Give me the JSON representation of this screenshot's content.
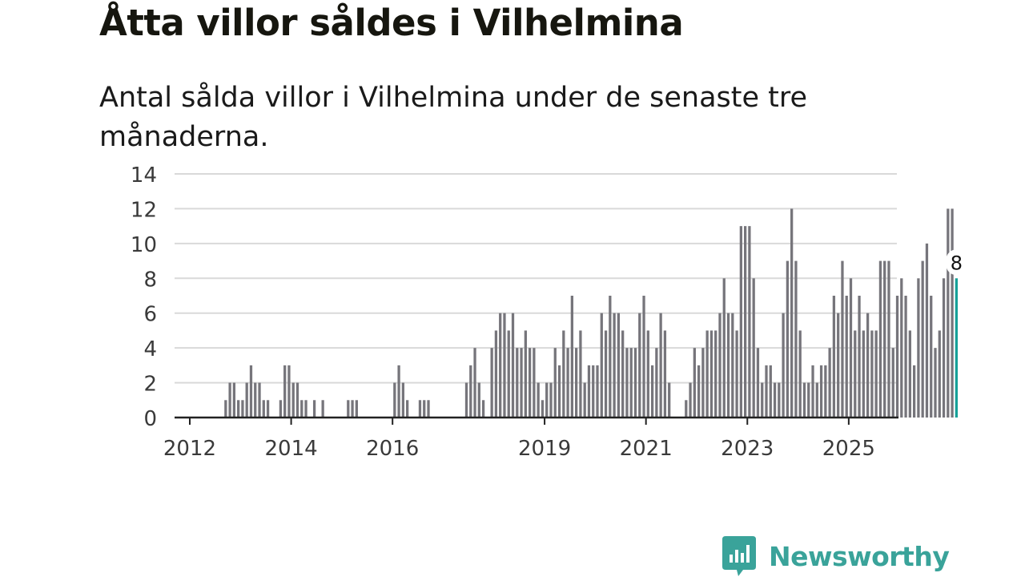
{
  "title": "Åtta villor såldes i Vilhelmina",
  "subtitle": "Antal sålda villor i Vilhelmina under de senaste tre månaderna.",
  "brand": {
    "name": "Newsworthy",
    "color": "#3aa39a",
    "icon": "chat-bubble-bar-chart-icon"
  },
  "colors": {
    "bar": "#76757b",
    "highlight": "#15a199",
    "grid": "#d9d9d9",
    "axis": "#222222"
  },
  "chart_data": {
    "type": "bar",
    "title": "",
    "xlabel": "",
    "ylabel": "",
    "ylim": [
      0,
      14
    ],
    "yticks": [
      0,
      2,
      4,
      6,
      8,
      10,
      12,
      14
    ],
    "xlim": [
      2011.7,
      2025.95
    ],
    "xticks": [
      {
        "year": 2012,
        "label": "2012"
      },
      {
        "year": 2014,
        "label": "2014"
      },
      {
        "year": 2016,
        "label": "2016"
      },
      {
        "year": 2019,
        "label": "2019"
      },
      {
        "year": 2021,
        "label": "2021"
      },
      {
        "year": 2023,
        "label": "2023"
      },
      {
        "year": 2025,
        "label": "2025"
      }
    ],
    "series_start_month": "2011-12",
    "period": "monthly",
    "values": [
      0,
      0,
      0,
      0,
      0,
      0,
      0,
      0,
      0,
      1,
      2,
      2,
      1,
      1,
      2,
      3,
      2,
      2,
      1,
      1,
      0,
      0,
      1,
      3,
      3,
      2,
      2,
      1,
      1,
      0,
      1,
      0,
      1,
      0,
      0,
      0,
      0,
      0,
      1,
      1,
      1,
      0,
      0,
      0,
      0,
      0,
      0,
      0,
      0,
      2,
      3,
      2,
      1,
      0,
      0,
      1,
      1,
      1,
      0,
      0,
      0,
      0,
      0,
      0,
      0,
      0,
      2,
      3,
      4,
      2,
      1,
      0,
      4,
      5,
      6,
      6,
      5,
      6,
      4,
      4,
      5,
      4,
      4,
      2,
      1,
      2,
      2,
      4,
      3,
      5,
      4,
      7,
      4,
      5,
      2,
      3,
      3,
      3,
      6,
      5,
      7,
      6,
      6,
      5,
      4,
      4,
      4,
      6,
      7,
      5,
      3,
      4,
      6,
      5,
      2,
      0,
      0,
      0,
      1,
      2,
      4,
      3,
      4,
      5,
      5,
      5,
      6,
      8,
      6,
      6,
      5,
      11,
      11,
      11,
      8,
      4,
      2,
      3,
      3,
      2,
      2,
      6,
      9,
      12,
      9,
      5,
      2,
      2,
      3,
      2,
      3,
      3,
      4,
      7,
      6,
      9,
      7,
      8,
      5,
      7,
      5,
      6,
      5,
      5,
      9,
      9,
      9,
      4,
      7,
      8,
      7,
      5,
      3,
      8,
      9,
      10,
      7,
      4,
      5,
      8,
      12,
      12,
      8
    ],
    "highlight": {
      "label": "8",
      "value": 8,
      "position": "last"
    }
  }
}
